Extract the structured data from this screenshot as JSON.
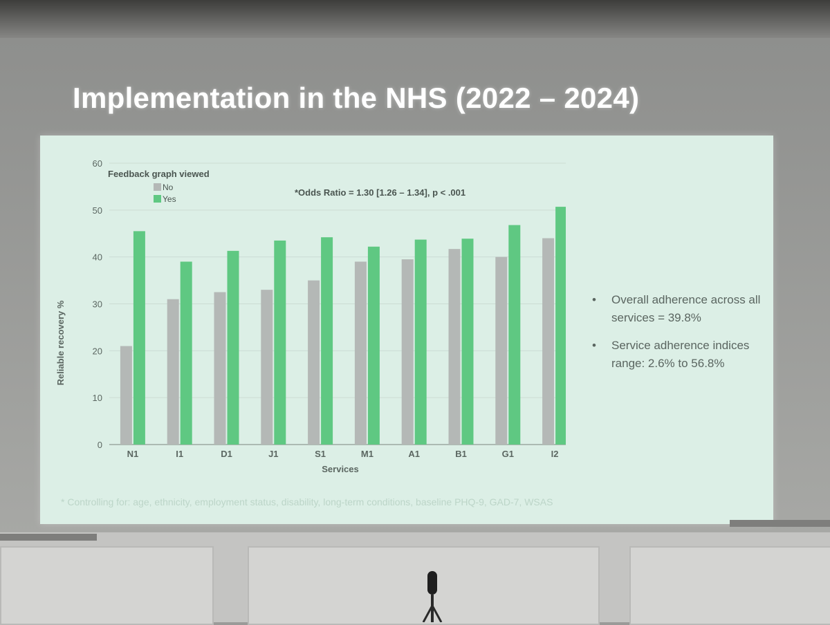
{
  "slide": {
    "title": "Implementation in the NHS (2022 – 2024)",
    "footnote": "* Controlling for: age, ethnicity, employment status, disability, long-term conditions, baseline PHQ-9, GAD-7, WSAS",
    "bullets": [
      "Overall adherence across all services = 39.8%",
      "Service adherence indices range: 2.6% to 56.8%"
    ]
  },
  "chart_data": {
    "type": "bar",
    "legend_title": "Feedback graph viewed",
    "annotation": "*Odds Ratio = 1.30 [1.26 – 1.34], p < .001",
    "categories": [
      "N1",
      "I1",
      "D1",
      "J1",
      "S1",
      "M1",
      "A1",
      "B1",
      "G1",
      "I2"
    ],
    "series": [
      {
        "name": "No",
        "color": "#b4b8b6",
        "values": [
          21,
          31,
          32.5,
          33,
          35,
          39,
          39.5,
          41.7,
          40,
          44
        ]
      },
      {
        "name": "Yes",
        "color": "#5fc882",
        "values": [
          45.5,
          39,
          41.3,
          43.5,
          44.2,
          42.2,
          43.7,
          43.9,
          46.8,
          50.7
        ]
      }
    ],
    "xlabel": "Services",
    "ylabel": "Reliable recovery %",
    "ylim": [
      0,
      60
    ],
    "yticks": [
      0,
      10,
      20,
      30,
      40,
      50,
      60
    ],
    "legend_position": "top-left",
    "grid": true
  }
}
